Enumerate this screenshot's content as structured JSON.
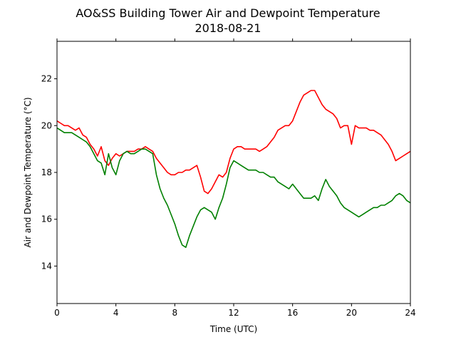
{
  "chart_data": {
    "type": "line",
    "title": "AO&SS Building Tower Air and Dewpoint Temperature",
    "subtitle": "2018-08-21",
    "xlabel": "Time (UTC)",
    "ylabel": "Air and Dewpoint Temperature (°C)",
    "xlim": [
      0,
      24
    ],
    "ylim": [
      12.4,
      23.6
    ],
    "xticks": [
      0,
      4,
      8,
      12,
      16,
      20,
      24
    ],
    "yticks": [
      14,
      16,
      18,
      20,
      22
    ],
    "grid": false,
    "legend": "none",
    "series": [
      {
        "color": "#ff0000",
        "x": [
          0,
          0.25,
          0.5,
          0.75,
          1.0,
          1.25,
          1.5,
          1.75,
          2.0,
          2.25,
          2.5,
          2.75,
          3.0,
          3.25,
          3.5,
          3.75,
          4.0,
          4.25,
          4.5,
          4.75,
          5.0,
          5.25,
          5.5,
          5.75,
          6.0,
          6.25,
          6.5,
          6.75,
          7.0,
          7.25,
          7.5,
          7.75,
          8.0,
          8.25,
          8.5,
          8.75,
          9.0,
          9.25,
          9.5,
          9.75,
          10.0,
          10.25,
          10.5,
          10.75,
          11.0,
          11.25,
          11.5,
          11.75,
          12.0,
          12.25,
          12.5,
          12.75,
          13.0,
          13.25,
          13.5,
          13.75,
          14.0,
          14.25,
          14.5,
          14.75,
          15.0,
          15.25,
          15.5,
          15.75,
          16.0,
          16.25,
          16.5,
          16.75,
          17.0,
          17.25,
          17.5,
          17.75,
          18.0,
          18.25,
          18.5,
          18.75,
          19.0,
          19.25,
          19.5,
          19.75,
          20.0,
          20.25,
          20.5,
          20.75,
          21.0,
          21.25,
          21.5,
          21.75,
          22.0,
          22.25,
          22.5,
          22.75,
          23.0,
          23.25,
          23.5,
          23.75,
          24.0
        ],
        "y": [
          20.2,
          20.1,
          20.0,
          20.0,
          19.9,
          19.8,
          19.9,
          19.6,
          19.5,
          19.2,
          19.0,
          18.7,
          19.1,
          18.5,
          18.3,
          18.6,
          18.8,
          18.7,
          18.8,
          18.9,
          18.9,
          18.9,
          19.0,
          19.0,
          19.1,
          19.0,
          18.9,
          18.6,
          18.4,
          18.2,
          18.0,
          17.9,
          17.9,
          18.0,
          18.0,
          18.1,
          18.1,
          18.2,
          18.3,
          17.8,
          17.2,
          17.1,
          17.3,
          17.6,
          17.9,
          17.8,
          18.0,
          18.6,
          19.0,
          19.1,
          19.1,
          19.0,
          19.0,
          19.0,
          19.0,
          18.9,
          19.0,
          19.1,
          19.3,
          19.5,
          19.8,
          19.9,
          20.0,
          20.0,
          20.2,
          20.6,
          21.0,
          21.3,
          21.4,
          21.5,
          21.5,
          21.2,
          20.9,
          20.7,
          20.6,
          20.5,
          20.3,
          19.9,
          20.0,
          20.0,
          19.2,
          20.0,
          19.9,
          19.9,
          19.9,
          19.8,
          19.8,
          19.7,
          19.6,
          19.4,
          19.2,
          18.9,
          18.5,
          18.6,
          18.7,
          18.8,
          18.9
        ]
      },
      {
        "color": "#008000",
        "x": [
          0,
          0.25,
          0.5,
          0.75,
          1.0,
          1.25,
          1.5,
          1.75,
          2.0,
          2.25,
          2.5,
          2.75,
          3.0,
          3.25,
          3.5,
          3.75,
          4.0,
          4.25,
          4.5,
          4.75,
          5.0,
          5.25,
          5.5,
          5.75,
          6.0,
          6.25,
          6.5,
          6.75,
          7.0,
          7.25,
          7.5,
          7.75,
          8.0,
          8.25,
          8.5,
          8.75,
          9.0,
          9.25,
          9.5,
          9.75,
          10.0,
          10.25,
          10.5,
          10.75,
          11.0,
          11.25,
          11.5,
          11.75,
          12.0,
          12.25,
          12.5,
          12.75,
          13.0,
          13.25,
          13.5,
          13.75,
          14.0,
          14.25,
          14.5,
          14.75,
          15.0,
          15.25,
          15.5,
          15.75,
          16.0,
          16.25,
          16.5,
          16.75,
          17.0,
          17.25,
          17.5,
          17.75,
          18.0,
          18.25,
          18.5,
          18.75,
          19.0,
          19.25,
          19.5,
          19.75,
          20.0,
          20.25,
          20.5,
          20.75,
          21.0,
          21.25,
          21.5,
          21.75,
          22.0,
          22.25,
          22.5,
          22.75,
          23.0,
          23.25,
          23.5,
          23.75,
          24.0
        ],
        "y": [
          19.9,
          19.8,
          19.7,
          19.7,
          19.7,
          19.6,
          19.5,
          19.4,
          19.3,
          19.1,
          18.8,
          18.5,
          18.4,
          17.9,
          18.8,
          18.2,
          17.9,
          18.5,
          18.8,
          18.9,
          18.8,
          18.8,
          18.9,
          19.0,
          19.0,
          18.9,
          18.8,
          17.9,
          17.3,
          16.9,
          16.6,
          16.2,
          15.8,
          15.3,
          14.9,
          14.8,
          15.3,
          15.7,
          16.1,
          16.4,
          16.5,
          16.4,
          16.3,
          16.0,
          16.5,
          16.9,
          17.5,
          18.2,
          18.5,
          18.4,
          18.3,
          18.2,
          18.1,
          18.1,
          18.1,
          18.0,
          18.0,
          17.9,
          17.8,
          17.8,
          17.6,
          17.5,
          17.4,
          17.3,
          17.5,
          17.3,
          17.1,
          16.9,
          16.9,
          16.9,
          17.0,
          16.8,
          17.3,
          17.7,
          17.4,
          17.2,
          17.0,
          16.7,
          16.5,
          16.4,
          16.3,
          16.2,
          16.1,
          16.2,
          16.3,
          16.4,
          16.5,
          16.5,
          16.6,
          16.6,
          16.7,
          16.8,
          17.0,
          17.1,
          17.0,
          16.8,
          16.7
        ]
      }
    ]
  }
}
